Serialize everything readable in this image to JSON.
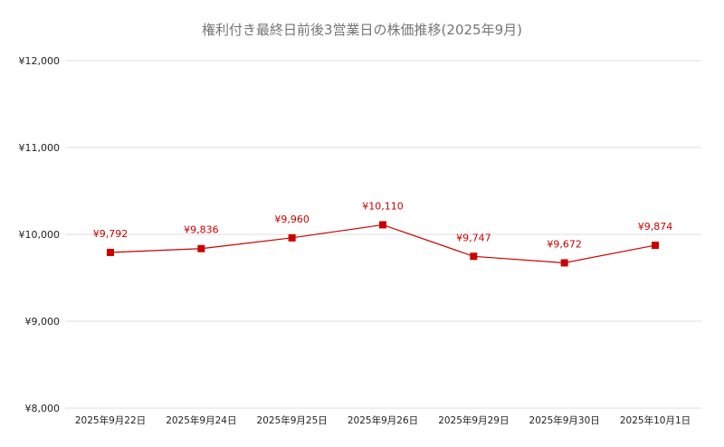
{
  "chart_data": {
    "type": "line",
    "title": "権利付き最終日前後3営業日の株価推移(2025年9月)",
    "categories": [
      "2025年9月22日",
      "2025年9月24日",
      "2025年9月25日",
      "2025年9月26日",
      "2025年9月29日",
      "2025年9月30日",
      "2025年10月1日"
    ],
    "series": [
      {
        "values": [
          9792,
          9836,
          9960,
          10110,
          9747,
          9672,
          9874
        ],
        "data_labels": [
          "¥9,792",
          "¥9,836",
          "¥9,960",
          "¥10,110",
          "¥9,747",
          "¥9,672",
          "¥9,874"
        ]
      }
    ],
    "ylim": [
      8000,
      12000
    ],
    "yticks": [
      8000,
      9000,
      10000,
      11000,
      12000
    ],
    "ytick_labels": [
      "¥8,000",
      "¥9,000",
      "¥10,000",
      "¥11,000",
      "¥12,000"
    ],
    "grid": true,
    "colors": {
      "series": "#cc0000",
      "label": "#cc0000",
      "grid": "#dcdcdc"
    }
  }
}
